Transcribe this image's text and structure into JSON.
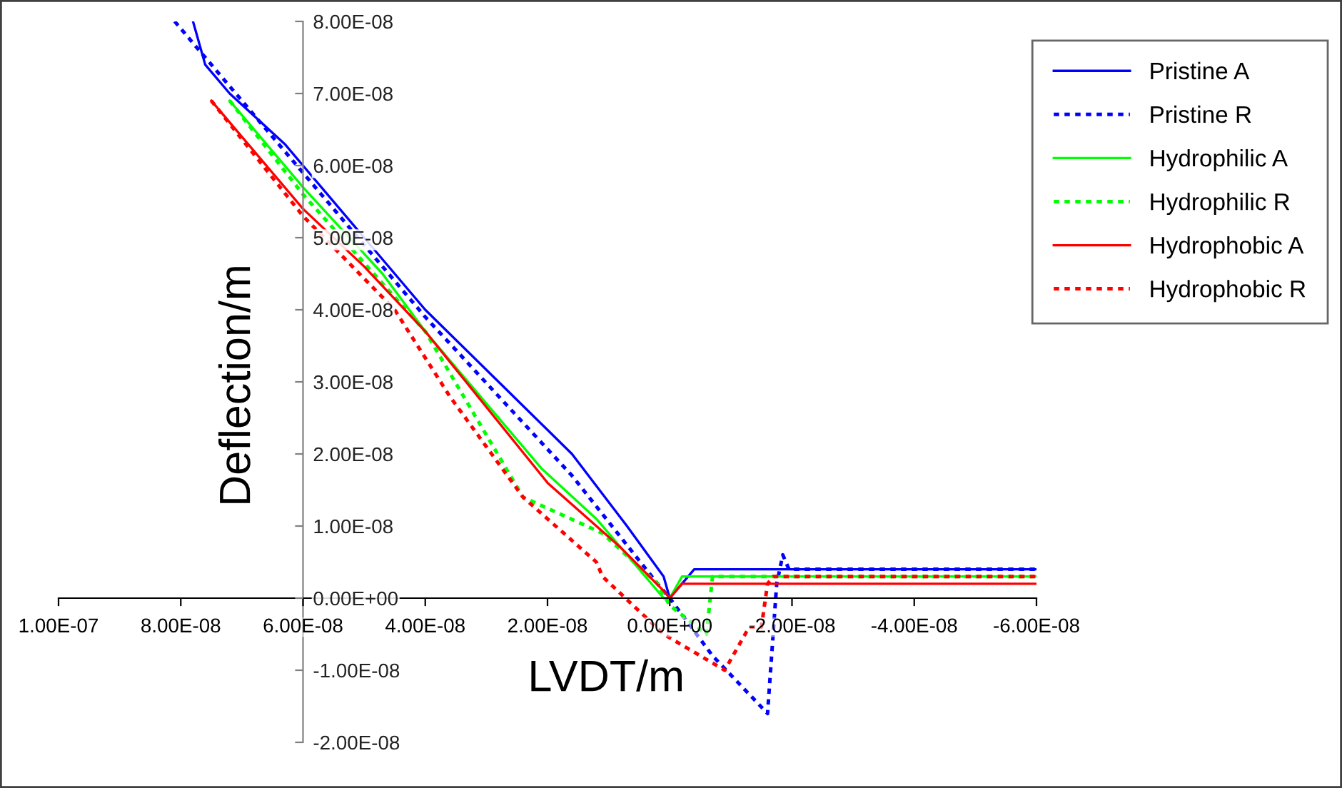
{
  "chart_data": {
    "type": "line",
    "xlabel": "LVDT/m",
    "ylabel": "Deflection/m",
    "xlim": [
      1e-07,
      -6e-08
    ],
    "xticks": [
      {
        "value": 1e-07,
        "label": "1.00E-07"
      },
      {
        "value": 8e-08,
        "label": "8.00E-08"
      },
      {
        "value": 6e-08,
        "label": "6.00E-08"
      },
      {
        "value": 4e-08,
        "label": "4.00E-08"
      },
      {
        "value": 2e-08,
        "label": "2.00E-08"
      },
      {
        "value": 0,
        "label": "0.00E+00"
      },
      {
        "value": -2e-08,
        "label": "-2.00E-08"
      },
      {
        "value": -4e-08,
        "label": "-4.00E-08"
      },
      {
        "value": -6e-08,
        "label": "-6.00E-08"
      }
    ],
    "ylim": [
      -2e-08,
      8e-08
    ],
    "yticks": [
      {
        "value": -2e-08,
        "label": "-2.00E-08"
      },
      {
        "value": -1e-08,
        "label": "-1.00E-08"
      },
      {
        "value": 0,
        "label": "0.00E+00"
      },
      {
        "value": 1e-08,
        "label": "1.00E-08"
      },
      {
        "value": 2e-08,
        "label": "2.00E-08"
      },
      {
        "value": 3e-08,
        "label": "3.00E-08"
      },
      {
        "value": 4e-08,
        "label": "4.00E-08"
      },
      {
        "value": 5e-08,
        "label": "5.00E-08"
      },
      {
        "value": 6e-08,
        "label": "6.00E-08"
      },
      {
        "value": 7e-08,
        "label": "7.00E-08"
      },
      {
        "value": 8e-08,
        "label": "8.00E-08"
      }
    ],
    "grid": false,
    "legend": "top right",
    "marker": "none",
    "series": [
      {
        "name": "Pristine A",
        "color": "#0000ff",
        "line_style": "solid",
        "x": [
          7.8e-08,
          7.6e-08,
          7.2e-08,
          6.3e-08,
          6e-08,
          5.1e-08,
          4e-08,
          2.8e-08,
          1.6e-08,
          7e-09,
          1e-09,
          0,
          -1e-09,
          -4e-09,
          -1.9e-08,
          -4e-08,
          -6e-08
        ],
        "values": [
          8e-08,
          7.4e-08,
          7e-08,
          6.3e-08,
          6e-08,
          5.1e-08,
          4e-08,
          3e-08,
          2e-08,
          1e-08,
          3e-09,
          0,
          1e-09,
          4e-09,
          4e-09,
          4e-09,
          4e-09
        ]
      },
      {
        "name": "Pristine R",
        "color": "#0000ff",
        "line_style": "dotted",
        "x": [
          8.1e-08,
          6e-08,
          4e-08,
          1.6e-08,
          2e-09,
          0,
          -7e-09,
          -1.6e-08,
          -1.75e-08,
          -1.85e-08,
          -1.95e-08,
          -4e-08,
          -6e-08
        ],
        "values": [
          8e-08,
          5.9e-08,
          3.9e-08,
          1.7e-08,
          2e-09,
          0,
          -8e-09,
          -1.6e-08,
          2e-09,
          6e-09,
          4e-09,
          4e-09,
          4e-09
        ]
      },
      {
        "name": "Hydrophilic A",
        "color": "#00ff00",
        "line_style": "solid",
        "x": [
          7.2e-08,
          6e-08,
          4.7e-08,
          4e-08,
          3e-08,
          2.1e-08,
          1.2e-08,
          1e-09,
          0,
          -2e-09,
          -7e-09,
          -6e-08
        ],
        "values": [
          6.9e-08,
          5.7e-08,
          4.5e-08,
          3.7e-08,
          2.7e-08,
          1.8e-08,
          1.1e-08,
          0,
          0,
          3e-09,
          3e-09,
          3e-09
        ]
      },
      {
        "name": "Hydrophilic R",
        "color": "#00ff00",
        "line_style": "dotted",
        "x": [
          7.2e-08,
          6e-08,
          4e-08,
          2.4e-08,
          1.1e-08,
          2e-09,
          0,
          -6e-09,
          -6.5e-09,
          -7e-09,
          -6e-08
        ],
        "values": [
          6.9e-08,
          5.6e-08,
          3.7e-08,
          1.4e-08,
          9e-09,
          2e-09,
          -1e-09,
          -5e-09,
          -1e-09,
          3e-09,
          3e-09
        ]
      },
      {
        "name": "Hydrophobic A",
        "color": "#ff0000",
        "line_style": "solid",
        "x": [
          7.5e-08,
          6e-08,
          5e-08,
          4e-08,
          2e-08,
          8e-09,
          1e-09,
          0,
          -2e-09,
          -7e-09,
          -6e-08
        ],
        "values": [
          6.9e-08,
          5.4e-08,
          4.6e-08,
          3.7e-08,
          1.6e-08,
          7e-09,
          1e-09,
          0,
          2e-09,
          2e-09,
          2e-09
        ]
      },
      {
        "name": "Hydrophobic R",
        "color": "#ff0000",
        "line_style": "dotted",
        "x": [
          7.5e-08,
          6e-08,
          4.5e-08,
          3.6e-08,
          2.4e-08,
          1.2e-08,
          1.1e-08,
          6e-09,
          1e-09,
          -9e-09,
          -1.1e-08,
          -1.3e-08,
          -1.5e-08,
          -1.6e-08,
          -1.7e-08,
          -6e-08
        ],
        "values": [
          6.9e-08,
          5.3e-08,
          4e-08,
          2.8e-08,
          1.4e-08,
          5e-09,
          3e-09,
          -1e-09,
          -5e-09,
          -1e-08,
          -7e-09,
          -4e-09,
          -4e-09,
          2e-09,
          3e-09,
          3e-09
        ]
      }
    ]
  }
}
